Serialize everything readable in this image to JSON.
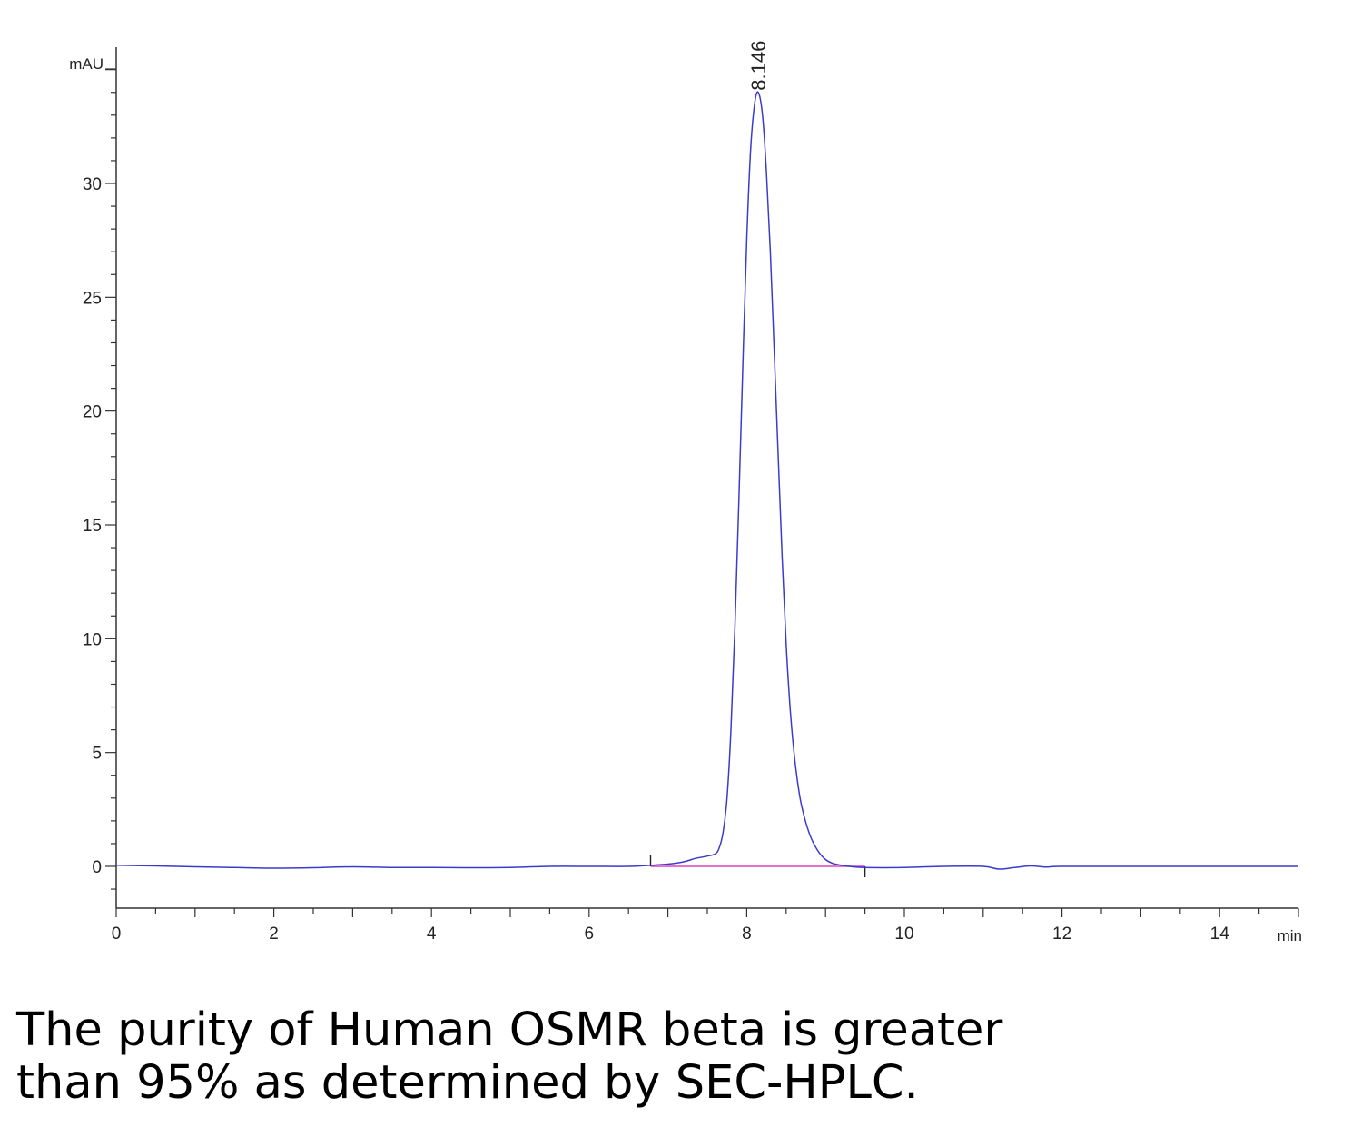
{
  "chart_data": {
    "type": "line",
    "ylabel": "mAU",
    "xlabel": "min",
    "xlim": [
      0,
      15
    ],
    "ylim": [
      -1.8,
      35.5
    ],
    "x_ticks": [
      0,
      2,
      4,
      6,
      8,
      10,
      12,
      14
    ],
    "x_tick_labels": [
      "0",
      "2",
      "4",
      "6",
      "8",
      "10",
      "12",
      "14"
    ],
    "y_ticks": [
      0,
      5,
      10,
      15,
      20,
      25,
      30
    ],
    "y_tick_labels": [
      "0",
      "5",
      "10",
      "15",
      "20",
      "25",
      "30"
    ],
    "grid": false,
    "series": [
      {
        "color": "#3b3bcc",
        "x": [
          0,
          0.5,
          1,
          1.5,
          2,
          2.5,
          3,
          3.5,
          4,
          4.5,
          5,
          5.5,
          6,
          6.5,
          6.8,
          7.0,
          7.2,
          7.35,
          7.5,
          7.6,
          7.65,
          7.7,
          7.75,
          7.8,
          7.85,
          7.9,
          7.95,
          8.0,
          8.05,
          8.1,
          8.146,
          8.2,
          8.25,
          8.3,
          8.35,
          8.4,
          8.45,
          8.5,
          8.55,
          8.6,
          8.65,
          8.7,
          8.8,
          8.9,
          9.0,
          9.1,
          9.2,
          9.3,
          9.5,
          10,
          10.5,
          11,
          11.2,
          11.4,
          11.6,
          11.8,
          12,
          13,
          14,
          15
        ],
        "y": [
          0.05,
          0.02,
          -0.02,
          -0.05,
          -0.08,
          -0.06,
          -0.02,
          -0.05,
          -0.05,
          -0.06,
          -0.05,
          0.0,
          0.0,
          0.0,
          0.05,
          0.1,
          0.2,
          0.35,
          0.45,
          0.55,
          0.8,
          1.5,
          3.0,
          6.0,
          10.5,
          16.0,
          22.0,
          27.5,
          31.5,
          33.5,
          34.0,
          33.0,
          30.5,
          27.0,
          22.5,
          18.0,
          13.5,
          9.8,
          7.0,
          5.0,
          3.6,
          2.6,
          1.4,
          0.7,
          0.3,
          0.12,
          0.05,
          0.0,
          -0.05,
          -0.05,
          0.0,
          0.0,
          -0.12,
          -0.05,
          0.02,
          -0.03,
          0.0,
          0.0,
          0.0,
          0.0
        ]
      }
    ],
    "baseline": {
      "color": "#e040c0",
      "x": [
        6.78,
        9.5
      ],
      "y": [
        0.0,
        0.0
      ]
    },
    "integration_marks": [
      6.78,
      9.5
    ],
    "annotations": [
      {
        "text": "8.146",
        "x": 8.146,
        "y": 34.0
      }
    ]
  },
  "caption": {
    "line1": "The purity of Human OSMR beta is greater",
    "line2": "than 95% as determined by SEC-HPLC."
  }
}
